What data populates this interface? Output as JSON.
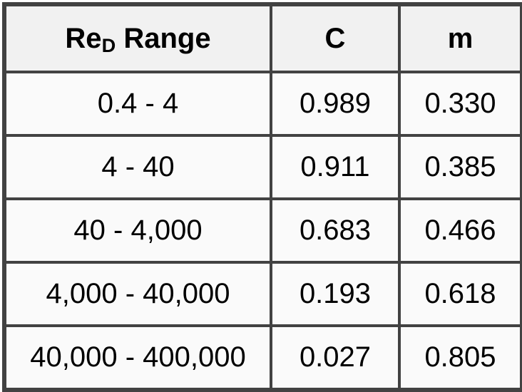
{
  "colors": {
    "border": "#424242",
    "header_background": "#f1f1f1",
    "row_background": "#fafafa",
    "text": "#000000"
  },
  "table": {
    "header": {
      "col1_prefix": "Re",
      "col1_sub": "D",
      "col1_suffix": " Range",
      "col2": "C",
      "col3": "m"
    },
    "rows": [
      {
        "range": "0.4 - 4",
        "c": "0.989",
        "m": "0.330"
      },
      {
        "range": "4 - 40",
        "c": "0.911",
        "m": "0.385"
      },
      {
        "range": "40 - 4,000",
        "c": "0.683",
        "m": "0.466"
      },
      {
        "range": "4,000 - 40,000",
        "c": "0.193",
        "m": "0.618"
      },
      {
        "range": "40,000 - 400,000",
        "c": "0.027",
        "m": "0.805"
      }
    ]
  },
  "chart_data": {
    "type": "table",
    "title": "",
    "columns": [
      "ReD Range",
      "C",
      "m"
    ],
    "rows": [
      [
        "0.4 - 4",
        0.989,
        0.33
      ],
      [
        "4 - 40",
        0.911,
        0.385
      ],
      [
        "40 - 4,000",
        0.683,
        0.466
      ],
      [
        "4,000 - 40,000",
        0.193,
        0.618
      ],
      [
        "40,000 - 400,000",
        0.027,
        0.805
      ]
    ]
  }
}
